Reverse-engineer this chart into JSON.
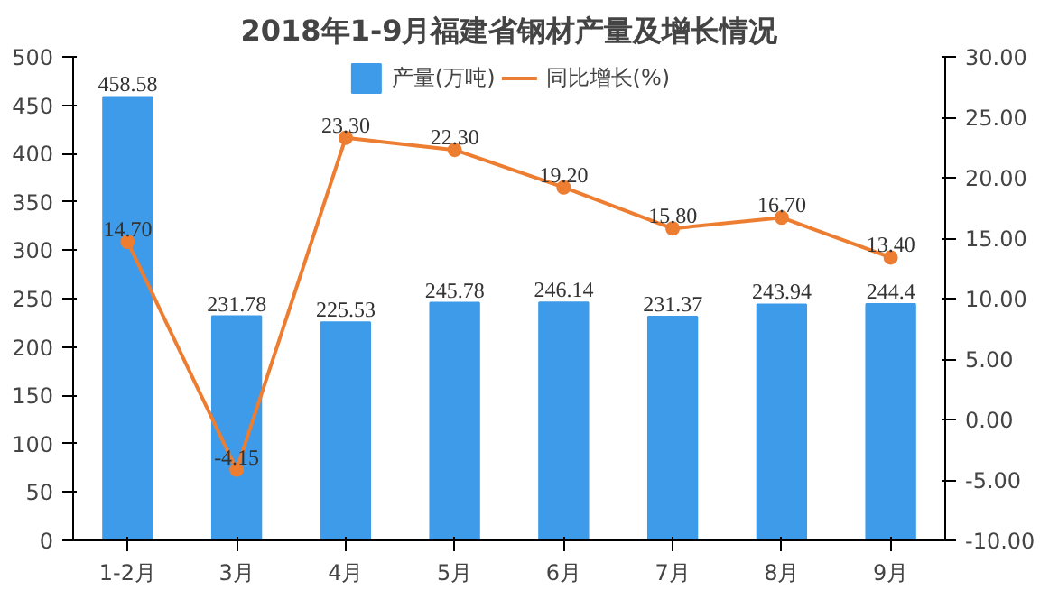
{
  "chart_data": {
    "type": "bar",
    "title": "2018年1-9月福建省钢材产量及增长情况",
    "categories": [
      "1-2月",
      "3月",
      "4月",
      "5月",
      "6月",
      "7月",
      "8月",
      "9月"
    ],
    "series": [
      {
        "name": "产量(万吨)",
        "color": "#3d9be9",
        "values": [
          458.58,
          231.78,
          225.53,
          245.78,
          246.14,
          231.37,
          243.94,
          244.4
        ],
        "value_labels": [
          "458.58",
          "231.78",
          "225.53",
          "245.78",
          "246.14",
          "231.37",
          "243.94",
          "244.4"
        ]
      },
      {
        "name": "同比增长(%)",
        "type": "line",
        "axis": "y2",
        "color": "#ed7d31",
        "marker": "circle",
        "values": [
          14.7,
          -4.15,
          23.3,
          22.3,
          19.2,
          15.8,
          16.7,
          13.4
        ],
        "value_labels": [
          "14.70",
          "-4.15",
          "23.30",
          "22.30",
          "19.20",
          "15.80",
          "16.70",
          "13.40"
        ]
      }
    ],
    "ylim": [
      0,
      500
    ],
    "yticks": [
      0,
      50,
      100,
      150,
      200,
      250,
      300,
      350,
      400,
      450,
      500
    ],
    "y2lim": [
      -10,
      30
    ],
    "y2ticks": [
      {
        "value": -10,
        "label": "-10.00"
      },
      {
        "value": -5,
        "label": "-5.00"
      },
      {
        "value": 0,
        "label": "0.00"
      },
      {
        "value": 5,
        "label": "5.00"
      },
      {
        "value": 10,
        "label": "10.00"
      },
      {
        "value": 15,
        "label": "15.00"
      },
      {
        "value": 20,
        "label": "20.00"
      },
      {
        "value": 25,
        "label": "25.00"
      },
      {
        "value": 30,
        "label": "30.00"
      }
    ],
    "legend": "top",
    "grid": false
  }
}
